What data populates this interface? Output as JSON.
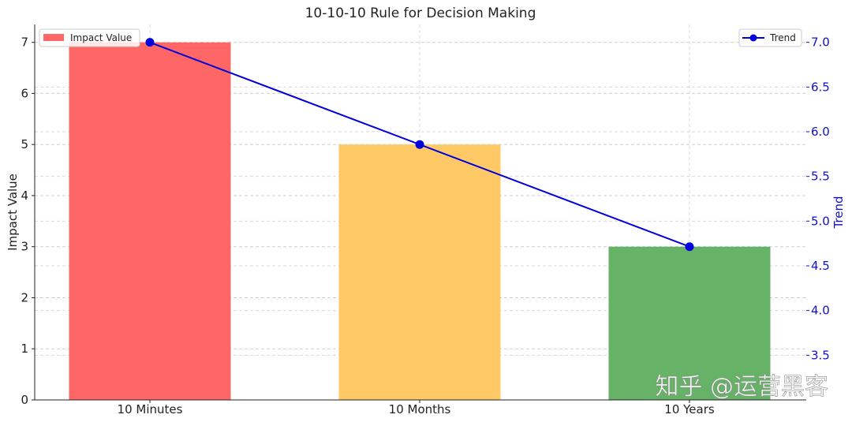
{
  "chart_data": {
    "type": "bar",
    "title": "10-10-10 Rule for Decision Making",
    "categories": [
      "10 Minutes",
      "10 Months",
      "10 Years"
    ],
    "series": [
      {
        "name": "Impact Value",
        "values": [
          7,
          5,
          3
        ],
        "colors": [
          "#ff6666",
          "#ffc966",
          "#66b266"
        ]
      }
    ],
    "trend": {
      "name": "Trend",
      "values": [
        7,
        5,
        3
      ],
      "color": "#0000dd"
    },
    "xlabel": "",
    "ylabel": "Impact Value",
    "ylabel_right": "Trend",
    "ylim": [
      0,
      7.35
    ],
    "yticks": [
      "0",
      "1",
      "2",
      "3",
      "4",
      "5",
      "6",
      "7"
    ],
    "ylim_right": [
      3.0,
      7.2
    ],
    "yticks_right": [
      "3.5",
      "4.0",
      "4.5",
      "5.0",
      "5.5",
      "6.0",
      "6.5",
      "7.0"
    ],
    "grid": true,
    "legend_left_position": "top-left",
    "legend_right_position": "top-right"
  },
  "watermark": "知乎 @运营黑客"
}
